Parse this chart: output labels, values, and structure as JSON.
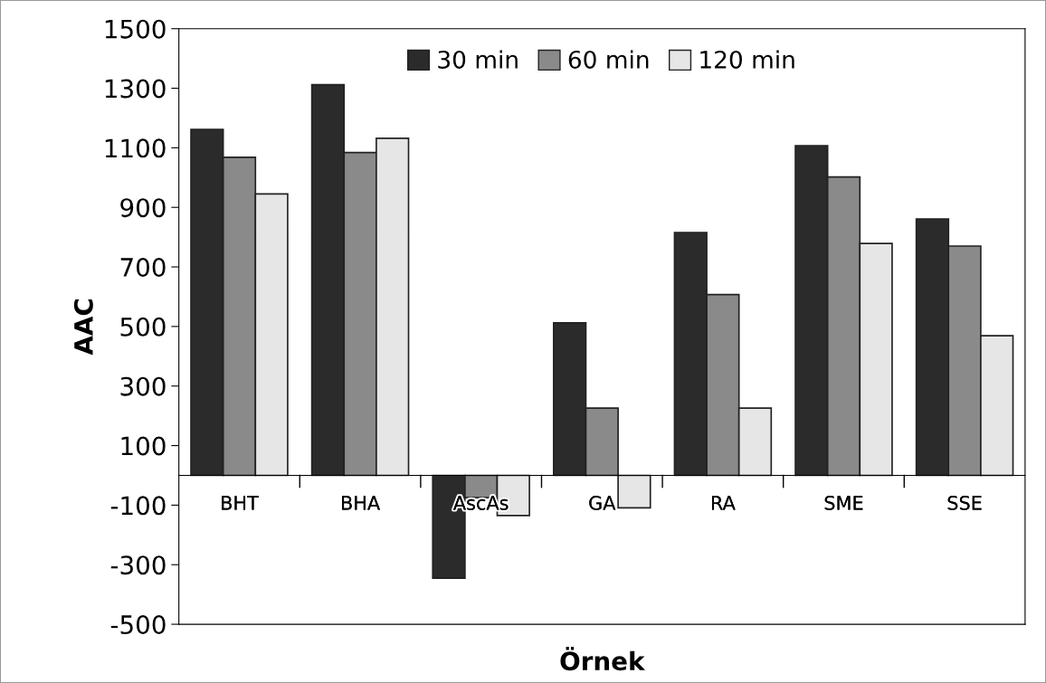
{
  "chart_data": {
    "type": "bar",
    "xlabel": "Örnek",
    "ylabel": "AAC",
    "categories": [
      "BHT",
      "BHA",
      "AscAs",
      "GA",
      "RA",
      "SME",
      "SSE"
    ],
    "series": [
      {
        "name": "30 min",
        "color": "#2b2b2b",
        "values": [
          1162,
          1312,
          -345,
          512,
          815,
          1107,
          861
        ]
      },
      {
        "name": "60 min",
        "color": "#8a8a8a",
        "values": [
          1068,
          1084,
          -75,
          226,
          607,
          1002,
          770
        ]
      },
      {
        "name": "120 min",
        "color": "#e6e6e6",
        "values": [
          945,
          1132,
          -135,
          -109,
          226,
          779,
          469
        ]
      }
    ],
    "ylim": [
      -500,
      1500
    ],
    "yticks": [
      -500,
      -300,
      -100,
      100,
      300,
      500,
      700,
      900,
      1100,
      1300,
      1500
    ],
    "legend": "top",
    "grid": false
  }
}
